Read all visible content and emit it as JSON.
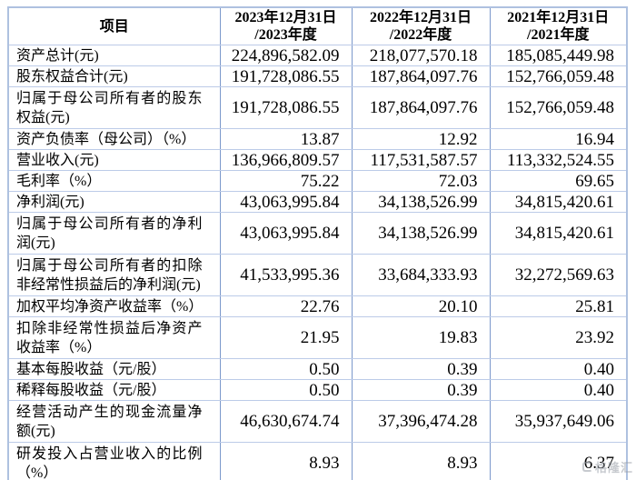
{
  "table": {
    "header": {
      "item": "项目",
      "periods": [
        {
          "line1": "2023年12月31日",
          "line2": "/2023年度"
        },
        {
          "line1": "2022年12月31日",
          "line2": "/2022年度"
        },
        {
          "line1": "2021年12月31日",
          "line2": "/2021年度"
        }
      ]
    },
    "rows": [
      {
        "label": "资产总计(元)",
        "values": [
          "224,896,582.09",
          "218,077,570.18",
          "185,085,449.98"
        ],
        "tall": false
      },
      {
        "label": "股东权益合计(元)",
        "values": [
          "191,728,086.55",
          "187,864,097.76",
          "152,766,059.48"
        ],
        "tall": false
      },
      {
        "label": "归属于母公司所有者的股东权益(元)",
        "values": [
          "191,728,086.55",
          "187,864,097.76",
          "152,766,059.48"
        ],
        "tall": true
      },
      {
        "label": "资产负债率（母公司）（%）",
        "values": [
          "13.87",
          "12.92",
          "16.94"
        ],
        "tall": false
      },
      {
        "label": "营业收入(元)",
        "values": [
          "136,966,809.57",
          "117,531,587.57",
          "113,332,524.55"
        ],
        "tall": false
      },
      {
        "label": "毛利率（%）",
        "values": [
          "75.22",
          "72.03",
          "69.65"
        ],
        "tall": false
      },
      {
        "label": "净利润(元)",
        "values": [
          "43,063,995.84",
          "34,138,526.99",
          "34,815,420.61"
        ],
        "tall": false
      },
      {
        "label": "归属于母公司所有者的净利润(元)",
        "values": [
          "43,063,995.84",
          "34,138,526.99",
          "34,815,420.61"
        ],
        "tall": true
      },
      {
        "label": "归属于母公司所有者的扣除非经常性损益后的净利润(元)",
        "values": [
          "41,533,995.36",
          "33,684,333.93",
          "32,272,569.63"
        ],
        "tall": true
      },
      {
        "label": "加权平均净资产收益率（%）",
        "values": [
          "22.76",
          "20.10",
          "25.81"
        ],
        "tall": false
      },
      {
        "label": "扣除非经常性损益后净资产收益率（%）",
        "values": [
          "21.95",
          "19.83",
          "23.92"
        ],
        "tall": true
      },
      {
        "label": "基本每股收益（元/股）",
        "values": [
          "0.50",
          "0.39",
          "0.40"
        ],
        "tall": false
      },
      {
        "label": "稀释每股收益（元/股）",
        "values": [
          "0.50",
          "0.39",
          "0.40"
        ],
        "tall": false
      },
      {
        "label": "经营活动产生的现金流量净额(元)",
        "values": [
          "46,630,674.74",
          "37,396,474.28",
          "35,937,649.06"
        ],
        "tall": true
      },
      {
        "label": "研发投入占营业收入的比例（%）",
        "values": [
          "8.93",
          "8.93",
          "6.37"
        ],
        "tall": true
      }
    ]
  },
  "watermark": {
    "text": "格隆汇"
  },
  "colors": {
    "border_vertical": "#7b98cb",
    "border_horizontal": "#bccbe8",
    "border_outer": "#aec1e0",
    "text": "#000000",
    "watermark": "#9aa0a8",
    "background": "#ffffff"
  }
}
